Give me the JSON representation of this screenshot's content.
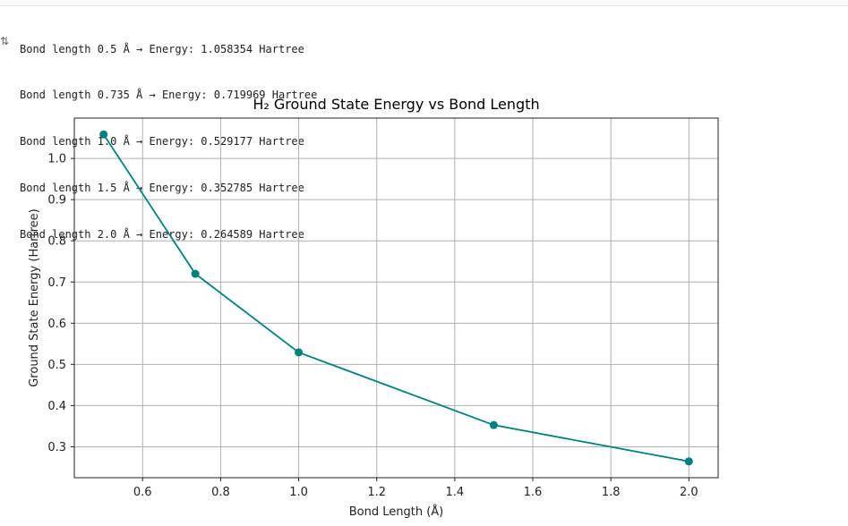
{
  "output": {
    "lines": [
      "Bond length 0.5 Å → Energy: 1.058354 Hartree",
      "Bond length 0.735 Å → Energy: 0.719969 Hartree",
      "Bond length 1.0 Å → Energy: 0.529177 Hartree",
      "Bond length 1.5 Å → Energy: 0.352785 Hartree",
      "Bond length 2.0 Å → Energy: 0.264589 Hartree"
    ],
    "icon": "output-toggle-icon"
  },
  "chart_data": {
    "type": "line",
    "title": "H₂ Ground State Energy vs Bond Length",
    "xlabel": "Bond Length (Å)",
    "ylabel": "Ground State Energy (Hartree)",
    "x": [
      0.5,
      0.735,
      1.0,
      1.5,
      2.0
    ],
    "series": [
      {
        "values": [
          1.058354,
          0.719969,
          0.529177,
          0.352785,
          0.264589
        ]
      }
    ],
    "xticks": [
      "0.6",
      "0.8",
      "1.0",
      "1.2",
      "1.4",
      "1.6",
      "1.8",
      "2.0"
    ],
    "yticks": [
      "0.3",
      "0.4",
      "0.5",
      "0.6",
      "0.7",
      "0.8",
      "0.9",
      "1.0"
    ],
    "xlim": [
      0.425,
      2.075
    ],
    "ylim": [
      0.225,
      1.098
    ],
    "grid": true,
    "line_color": "#008080",
    "marker": "circle"
  }
}
